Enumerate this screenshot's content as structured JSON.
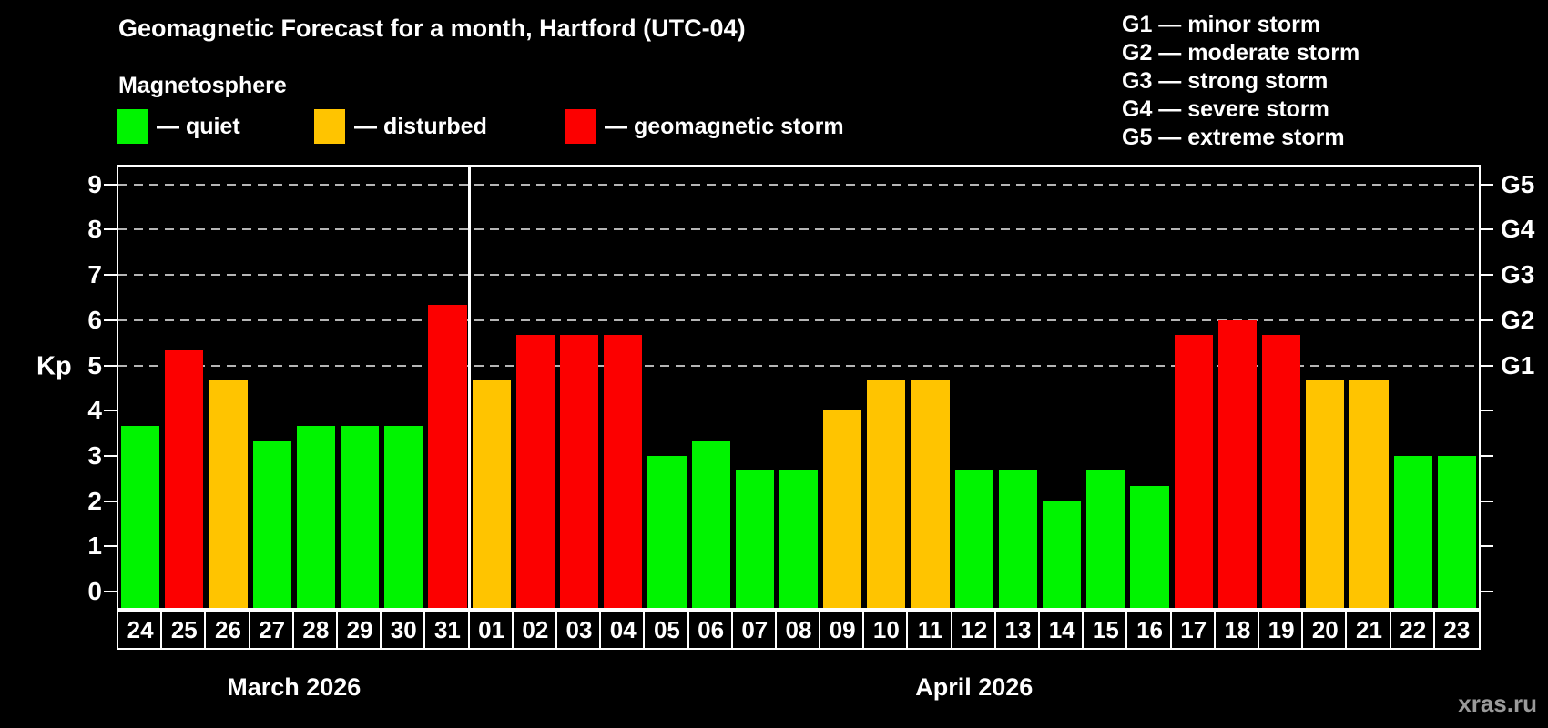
{
  "page": {
    "background": "#000000",
    "watermark": "xras.ru"
  },
  "header": {
    "title": "Geomagnetic Forecast for a month, Hartford (UTC-04)",
    "subtitle": "Magnetosphere",
    "legend": [
      {
        "status": "quiet",
        "label": "— quiet",
        "color": "#00f400"
      },
      {
        "status": "disturbed",
        "label": "— disturbed",
        "color": "#ffc400"
      },
      {
        "status": "storm",
        "label": "— geomagnetic storm",
        "color": "#fc0000"
      }
    ],
    "g_scale": [
      "G1 — minor storm",
      "G2 — moderate storm",
      "G3 — strong storm",
      "G4 — severe storm",
      "G5 — extreme storm"
    ]
  },
  "chart_data": {
    "type": "bar",
    "title": "Geomagnetic Forecast for a month, Hartford (UTC-04)",
    "subtitle": "Magnetosphere",
    "xlabel": "",
    "ylabel": "Kp",
    "ylim": [
      0,
      9
    ],
    "y_ticks": [
      0,
      1,
      2,
      3,
      4,
      5,
      6,
      7,
      8,
      9
    ],
    "grid_kp_levels": [
      5,
      6,
      7,
      8,
      9
    ],
    "grid_on": true,
    "right_axis": {
      "labels": [
        "G1",
        "G2",
        "G3",
        "G4",
        "G5"
      ],
      "at_kp": [
        5,
        6,
        7,
        8,
        9
      ]
    },
    "status_colors": {
      "quiet": "#00f400",
      "disturbed": "#ffc400",
      "storm": "#fc0000"
    },
    "months": [
      {
        "label": "March 2026",
        "days": [
          "24",
          "25",
          "26",
          "27",
          "28",
          "29",
          "30",
          "31"
        ]
      },
      {
        "label": "April 2026",
        "days": [
          "01",
          "02",
          "03",
          "04",
          "05",
          "06",
          "07",
          "08",
          "09",
          "10",
          "11",
          "12",
          "13",
          "14",
          "15",
          "16",
          "17",
          "18",
          "19",
          "20",
          "21",
          "22",
          "23"
        ]
      }
    ],
    "values": [
      3.67,
      5.33,
      4.67,
      3.33,
      3.67,
      3.67,
      3.67,
      6.33,
      4.67,
      5.67,
      5.67,
      5.67,
      3.0,
      3.33,
      2.67,
      2.67,
      4.0,
      4.67,
      4.67,
      2.67,
      2.67,
      2.0,
      2.67,
      2.33,
      5.67,
      6.0,
      5.67,
      4.67,
      4.67,
      3.0,
      3.0
    ],
    "statuses": [
      "quiet",
      "storm",
      "disturbed",
      "quiet",
      "quiet",
      "quiet",
      "quiet",
      "storm",
      "disturbed",
      "storm",
      "storm",
      "storm",
      "quiet",
      "quiet",
      "quiet",
      "quiet",
      "disturbed",
      "disturbed",
      "disturbed",
      "quiet",
      "quiet",
      "quiet",
      "quiet",
      "quiet",
      "storm",
      "storm",
      "storm",
      "disturbed",
      "disturbed",
      "quiet",
      "quiet"
    ]
  }
}
